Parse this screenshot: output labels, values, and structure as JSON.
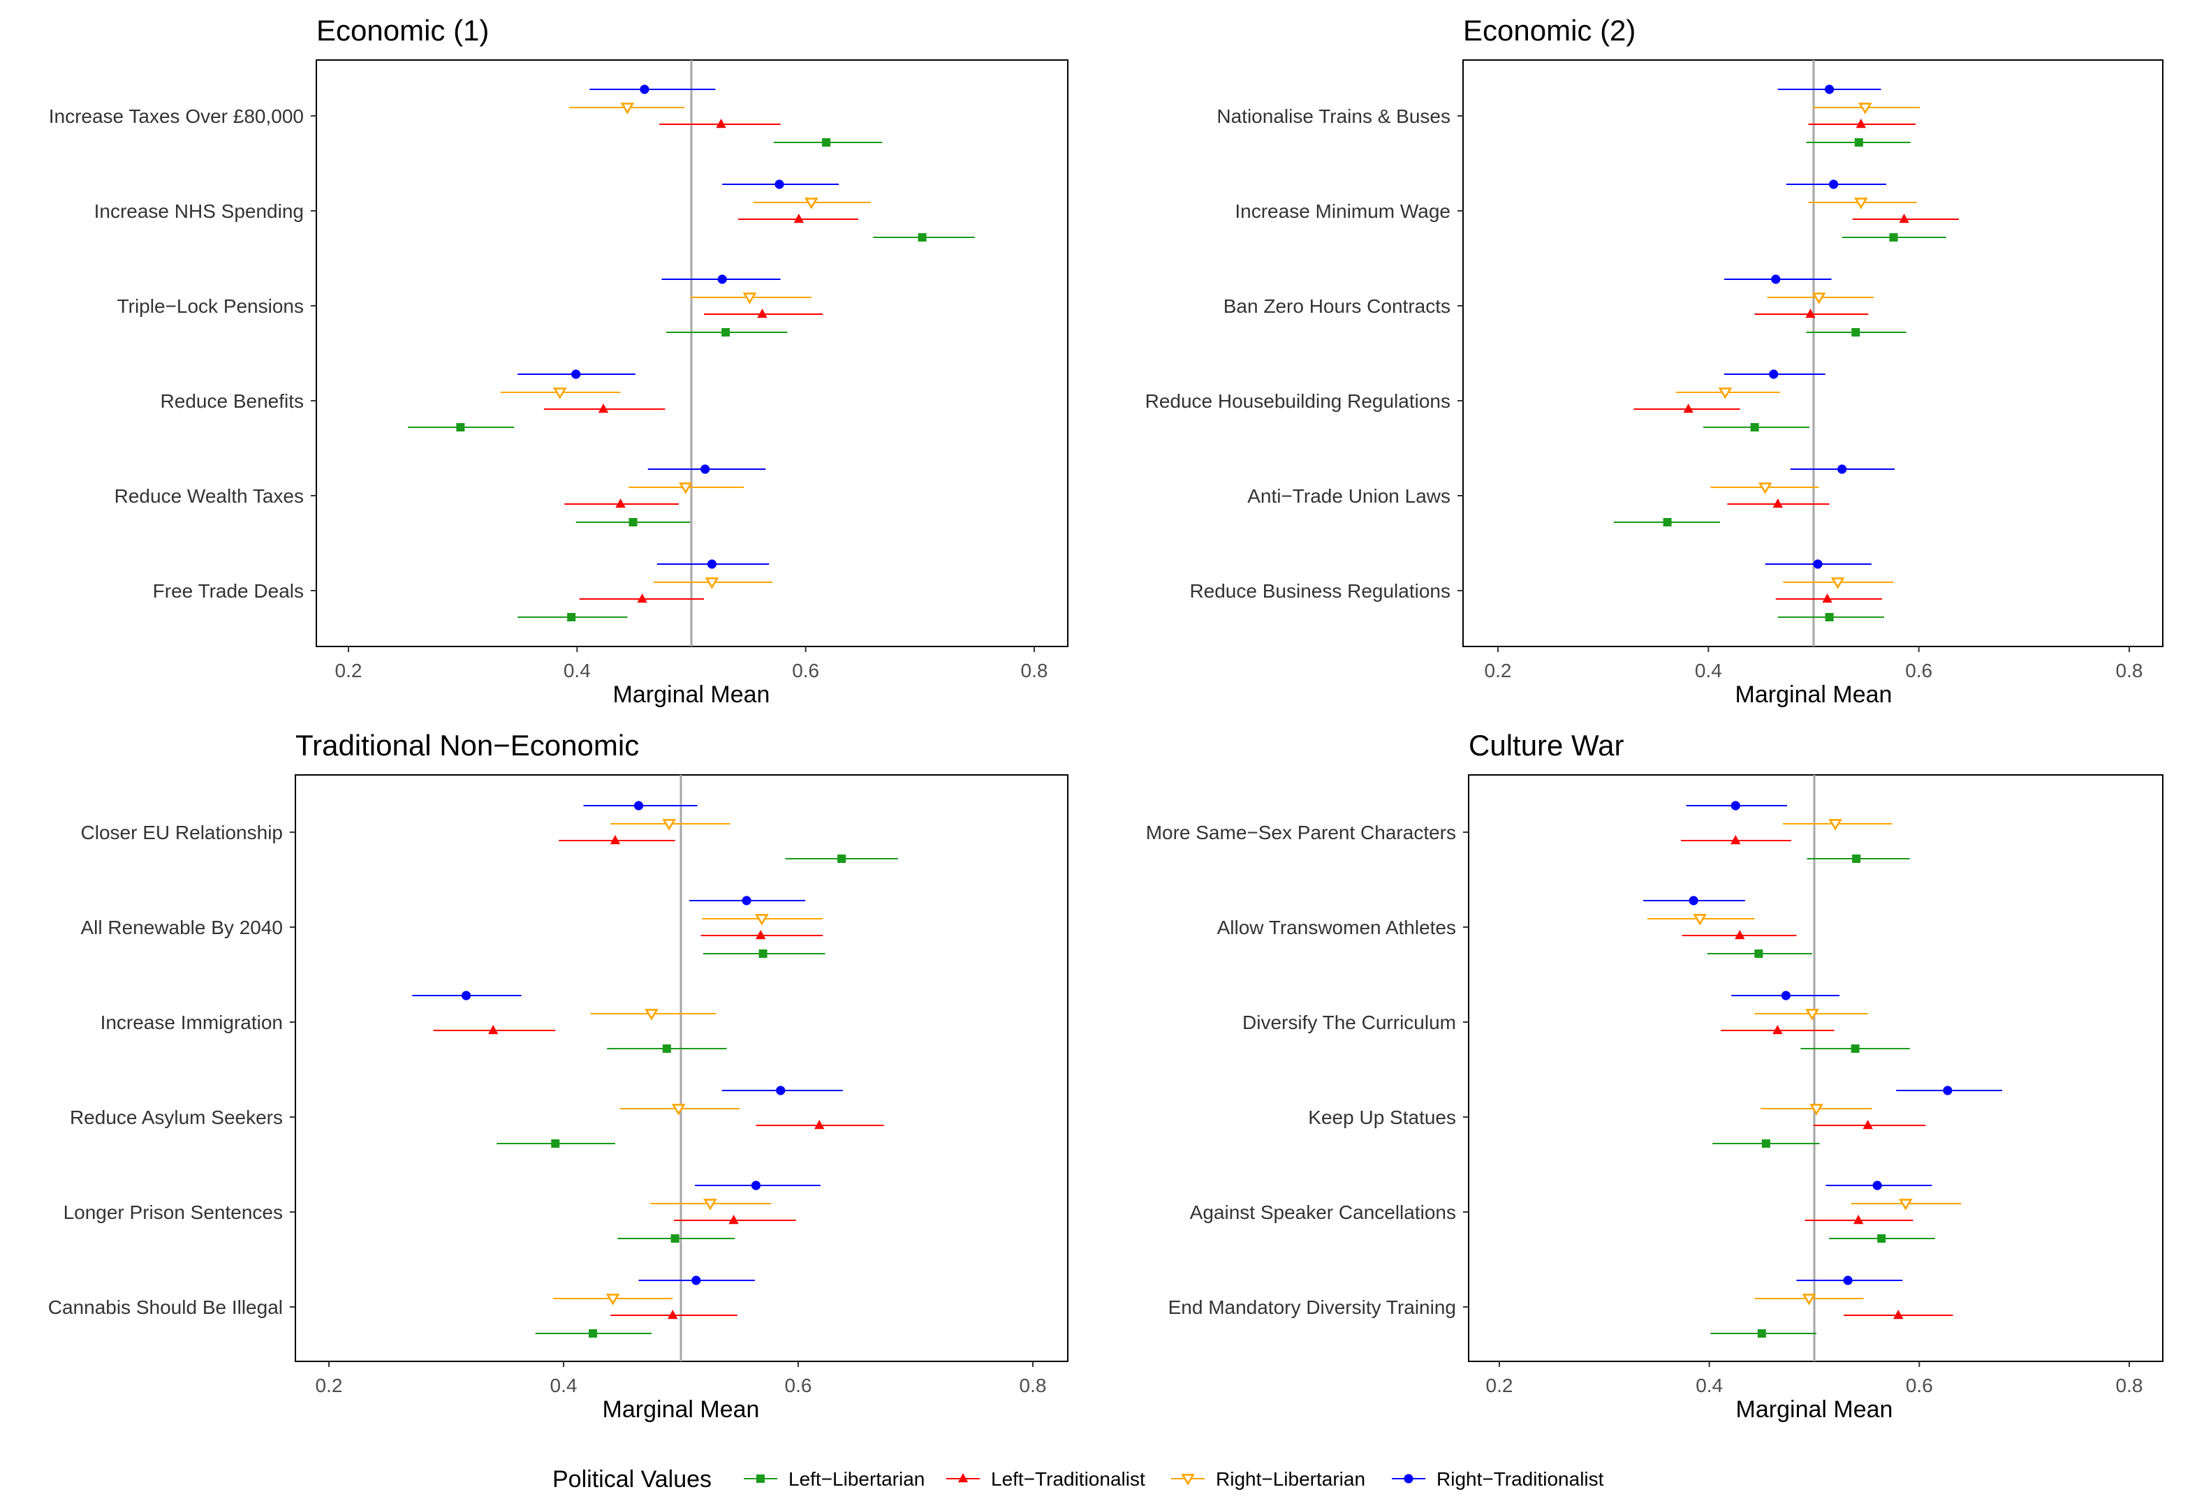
{
  "chart_data": [
    {
      "type": "scatter",
      "subtype": "point-range",
      "title": "Economic (1)",
      "xlabel": "Marginal Mean",
      "xlim": [
        0.17,
        0.83
      ],
      "xticks": [
        "0.2",
        "0.4",
        "0.6",
        "0.8"
      ],
      "reference_line": 0.5,
      "categories": [
        "Increase Taxes Over £80,000",
        "Increase NHS Spending",
        "Triple−Lock Pensions",
        "Reduce Benefits",
        "Reduce Wealth Taxes",
        "Free Trade Deals"
      ],
      "series": [
        {
          "name": "Right−Traditionalist",
          "values": [
            0.459,
            0.577,
            0.527,
            0.399,
            0.512,
            0.518
          ],
          "lower": [
            0.411,
            0.527,
            0.474,
            0.348,
            0.462,
            0.47
          ],
          "upper": [
            0.521,
            0.629,
            0.578,
            0.451,
            0.565,
            0.568
          ]
        },
        {
          "name": "Right−Libertarian",
          "values": [
            0.444,
            0.605,
            0.551,
            0.385,
            0.495,
            0.518
          ],
          "lower": [
            0.393,
            0.554,
            0.499,
            0.333,
            0.445,
            0.467
          ],
          "upper": [
            0.494,
            0.657,
            0.605,
            0.438,
            0.546,
            0.571
          ]
        },
        {
          "name": "Left−Traditionalist",
          "values": [
            0.526,
            0.594,
            0.562,
            0.423,
            0.438,
            0.457
          ],
          "lower": [
            0.472,
            0.541,
            0.511,
            0.371,
            0.389,
            0.402
          ],
          "upper": [
            0.578,
            0.646,
            0.615,
            0.477,
            0.489,
            0.511
          ]
        },
        {
          "name": "Left−Libertarian",
          "values": [
            0.618,
            0.702,
            0.53,
            0.298,
            0.449,
            0.395
          ],
          "lower": [
            0.572,
            0.659,
            0.478,
            0.252,
            0.399,
            0.348
          ],
          "upper": [
            0.667,
            0.748,
            0.584,
            0.345,
            0.499,
            0.444
          ]
        }
      ]
    },
    {
      "type": "scatter",
      "subtype": "point-range",
      "title": "Economic (2)",
      "xlabel": "Marginal Mean",
      "xlim": [
        0.17,
        0.83
      ],
      "xticks": [
        "0.2",
        "0.4",
        "0.6",
        "0.8"
      ],
      "reference_line": 0.5,
      "categories": [
        "Nationalise Trains & Buses",
        "Increase Minimum Wage",
        "Ban Zero Hours Contracts",
        "Reduce Housebuilding Regulations",
        "Anti−Trade Union Laws",
        "Reduce Business Regulations"
      ],
      "series": [
        {
          "name": "Right−Traditionalist",
          "values": [
            0.515,
            0.519,
            0.464,
            0.462,
            0.527,
            0.504
          ],
          "lower": [
            0.466,
            0.474,
            0.415,
            0.415,
            0.478,
            0.454
          ],
          "upper": [
            0.564,
            0.569,
            0.517,
            0.511,
            0.577,
            0.555
          ]
        },
        {
          "name": "Right−Libertarian",
          "values": [
            0.549,
            0.545,
            0.505,
            0.416,
            0.454,
            0.523
          ],
          "lower": [
            0.499,
            0.495,
            0.456,
            0.369,
            0.402,
            0.471
          ],
          "upper": [
            0.601,
            0.598,
            0.557,
            0.468,
            0.505,
            0.576
          ]
        },
        {
          "name": "Left−Traditionalist",
          "values": [
            0.545,
            0.586,
            0.497,
            0.381,
            0.466,
            0.513
          ],
          "lower": [
            0.495,
            0.537,
            0.444,
            0.329,
            0.418,
            0.464
          ],
          "upper": [
            0.597,
            0.638,
            0.552,
            0.43,
            0.515,
            0.565
          ]
        },
        {
          "name": "Left−Libertarian",
          "values": [
            0.543,
            0.576,
            0.54,
            0.444,
            0.361,
            0.515
          ],
          "lower": [
            0.493,
            0.527,
            0.493,
            0.395,
            0.31,
            0.466
          ],
          "upper": [
            0.592,
            0.626,
            0.588,
            0.496,
            0.411,
            0.567
          ]
        }
      ]
    },
    {
      "type": "scatter",
      "subtype": "point-range",
      "title": "Traditional Non−Economic",
      "xlabel": "Marginal Mean",
      "xlim": [
        0.17,
        0.83
      ],
      "xticks": [
        "0.2",
        "0.4",
        "0.6",
        "0.8"
      ],
      "reference_line": 0.5,
      "categories": [
        "Closer EU Relationship",
        "All Renewable By 2040",
        "Increase Immigration",
        "Reduce Asylum Seekers",
        "Longer Prison Sentences",
        "Cannabis Should Be Illegal"
      ],
      "series": [
        {
          "name": "Right−Traditionalist",
          "values": [
            0.464,
            0.556,
            0.317,
            0.585,
            0.564,
            0.513
          ],
          "lower": [
            0.417,
            0.507,
            0.271,
            0.535,
            0.512,
            0.464
          ],
          "upper": [
            0.514,
            0.606,
            0.364,
            0.638,
            0.619,
            0.563
          ]
        },
        {
          "name": "Right−Libertarian",
          "values": [
            0.49,
            0.569,
            0.475,
            0.498,
            0.525,
            0.442
          ],
          "lower": [
            0.44,
            0.518,
            0.423,
            0.448,
            0.474,
            0.391
          ],
          "upper": [
            0.542,
            0.621,
            0.53,
            0.55,
            0.577,
            0.493
          ]
        },
        {
          "name": "Left−Traditionalist",
          "values": [
            0.444,
            0.568,
            0.34,
            0.618,
            0.545,
            0.493
          ],
          "lower": [
            0.396,
            0.517,
            0.289,
            0.564,
            0.494,
            0.44
          ],
          "upper": [
            0.495,
            0.621,
            0.393,
            0.673,
            0.598,
            0.548
          ]
        },
        {
          "name": "Left−Libertarian",
          "values": [
            0.637,
            0.57,
            0.488,
            0.393,
            0.495,
            0.425
          ],
          "lower": [
            0.589,
            0.519,
            0.437,
            0.343,
            0.446,
            0.376
          ],
          "upper": [
            0.685,
            0.623,
            0.539,
            0.444,
            0.546,
            0.475
          ]
        }
      ]
    },
    {
      "type": "scatter",
      "subtype": "point-range",
      "title": "Culture War",
      "xlabel": "Marginal Mean",
      "xlim": [
        0.17,
        0.83
      ],
      "xticks": [
        "0.2",
        "0.4",
        "0.6",
        "0.8"
      ],
      "reference_line": 0.5,
      "categories": [
        "More Same−Sex Parent Characters",
        "Allow Transwomen Athletes",
        "Diversify The Curriculum",
        "Keep Up Statues",
        "Against Speaker Cancellations",
        "End Mandatory Diversity Training"
      ],
      "series": [
        {
          "name": "Right−Traditionalist",
          "values": [
            0.425,
            0.385,
            0.473,
            0.627,
            0.56,
            0.532
          ],
          "lower": [
            0.378,
            0.337,
            0.421,
            0.578,
            0.511,
            0.483
          ],
          "upper": [
            0.474,
            0.434,
            0.524,
            0.679,
            0.612,
            0.584
          ]
        },
        {
          "name": "Right−Libertarian",
          "values": [
            0.52,
            0.391,
            0.498,
            0.502,
            0.587,
            0.495
          ],
          "lower": [
            0.47,
            0.341,
            0.443,
            0.449,
            0.535,
            0.443
          ],
          "upper": [
            0.574,
            0.443,
            0.551,
            0.555,
            0.64,
            0.547
          ]
        },
        {
          "name": "Left−Traditionalist",
          "values": [
            0.425,
            0.429,
            0.465,
            0.551,
            0.542,
            0.58
          ],
          "lower": [
            0.373,
            0.374,
            0.411,
            0.499,
            0.491,
            0.528
          ],
          "upper": [
            0.478,
            0.483,
            0.519,
            0.606,
            0.594,
            0.632
          ]
        },
        {
          "name": "Left−Libertarian",
          "values": [
            0.54,
            0.447,
            0.539,
            0.454,
            0.564,
            0.45
          ],
          "lower": [
            0.493,
            0.398,
            0.487,
            0.403,
            0.514,
            0.401
          ],
          "upper": [
            0.591,
            0.498,
            0.591,
            0.505,
            0.615,
            0.502
          ]
        }
      ]
    }
  ],
  "legend": {
    "title": "Political Values",
    "placement": "bottom",
    "items": [
      {
        "name": "Left−Libertarian",
        "color": "#1a9a1a",
        "shape": "square"
      },
      {
        "name": "Left−Traditionalist",
        "color": "#ff0000",
        "shape": "triangle-up"
      },
      {
        "name": "Right−Libertarian",
        "color": "#ffa500",
        "shape": "triangle-down-open"
      },
      {
        "name": "Right−Traditionalist",
        "color": "#0000ff",
        "shape": "circle"
      }
    ]
  }
}
